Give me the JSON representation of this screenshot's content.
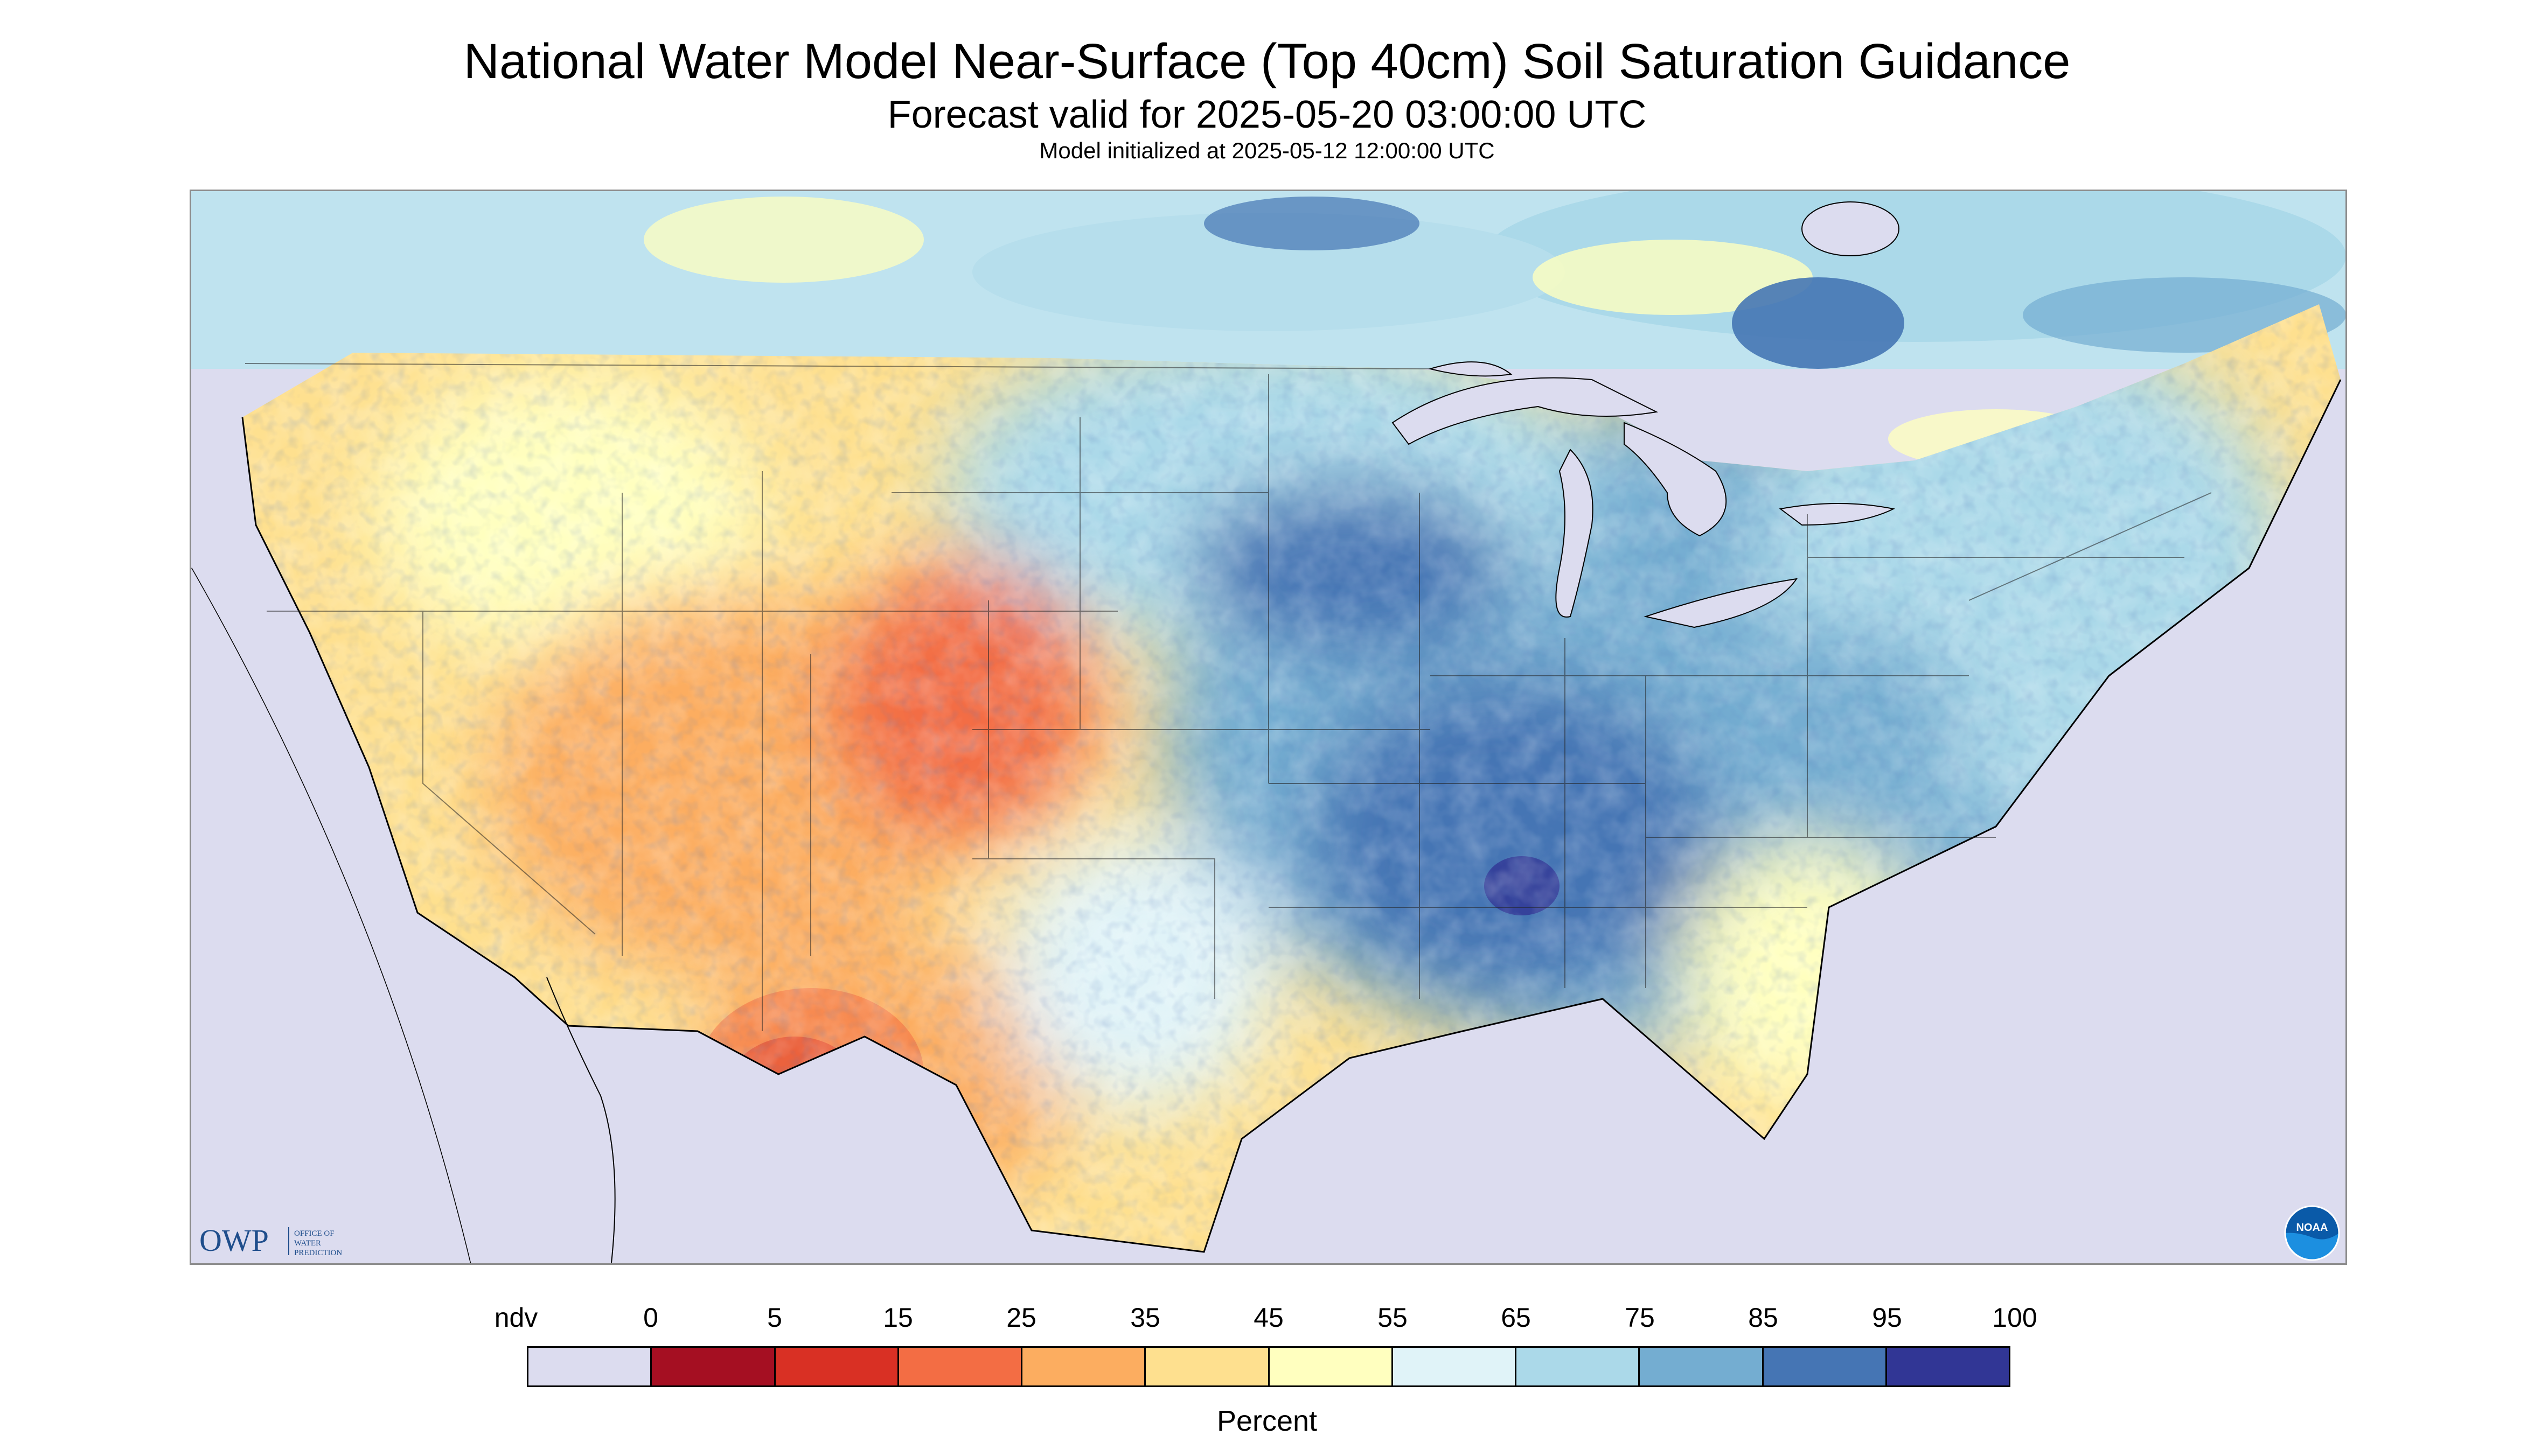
{
  "header": {
    "title": "National Water Model Near-Surface (Top 40cm) Soil Saturation Guidance",
    "subtitle": "Forecast valid for 2025-05-20 03:00:00 UTC",
    "init": "Model initialized at 2025-05-12 12:00:00 UTC"
  },
  "logos": {
    "owp": {
      "mark": "OWP",
      "text": [
        "OFFICE OF",
        "WATER",
        "PREDICTION"
      ],
      "icon": "owp-logo"
    },
    "noaa": {
      "mark": "NOAA",
      "icon": "noaa-logo"
    }
  },
  "legend": {
    "unit": "Percent",
    "labels": [
      "ndv",
      "0",
      "5",
      "15",
      "25",
      "35",
      "45",
      "55",
      "65",
      "75",
      "85",
      "95",
      "100"
    ],
    "colors": [
      "#dcdcef",
      "#a50f22",
      "#d93024",
      "#f36d44",
      "#fcad60",
      "#fee08f",
      "#ffffbf",
      "#e0f3f8",
      "#abd9e9",
      "#74add1",
      "#4575b4",
      "#313695"
    ]
  }
}
